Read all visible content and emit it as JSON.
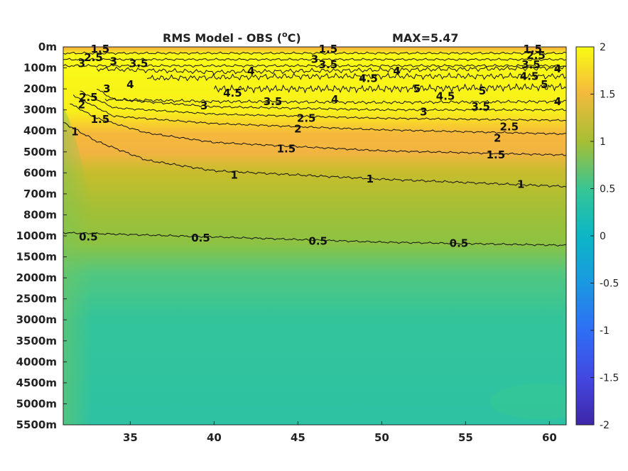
{
  "chart_data": {
    "type": "heatmap",
    "title": "RMS Model - OBS (",
    "title_sup": "o",
    "title_unit": "C)",
    "max_label": "MAX=5.47",
    "xlabel": "",
    "ylabel": "",
    "x_ticks": [
      35,
      40,
      45,
      50,
      55,
      60
    ],
    "xlim": [
      31,
      61
    ],
    "y_tick_labels": [
      "0m",
      "100m",
      "200m",
      "300m",
      "400m",
      "500m",
      "600m",
      "700m",
      "800m",
      "1000m",
      "1500m",
      "2000m",
      "2500m",
      "3000m",
      "3500m",
      "4000m",
      "4500m",
      "5000m",
      "5500m"
    ],
    "colorbar": {
      "range": [
        -2,
        2
      ],
      "ticks": [
        2,
        1.5,
        1,
        0.5,
        0,
        -0.5,
        -1,
        -1.5,
        -2
      ],
      "tick_labels": [
        "2",
        "1.5",
        "1",
        "0.5",
        "0",
        "-0.5",
        "-1",
        "-1.5",
        "-2"
      ],
      "colormap": "parula"
    },
    "contour_levels": [
      0.5,
      1,
      1.5,
      2,
      2.5,
      3,
      3.5,
      4,
      4.5,
      5
    ],
    "contour_labels": [
      {
        "text": "1.5",
        "x": 33.2,
        "depth_index": 0.1
      },
      {
        "text": "2.5",
        "x": 32.8,
        "depth_index": 0.5
      },
      {
        "text": "3",
        "x": 34.0,
        "depth_index": 0.7
      },
      {
        "text": "3",
        "x": 32.1,
        "depth_index": 0.8
      },
      {
        "text": "3.5",
        "x": 35.5,
        "depth_index": 0.8
      },
      {
        "text": "4",
        "x": 42.2,
        "depth_index": 1.15
      },
      {
        "text": "4",
        "x": 35.0,
        "depth_index": 1.8
      },
      {
        "text": "3",
        "x": 33.6,
        "depth_index": 2.0
      },
      {
        "text": "4.5",
        "x": 41.1,
        "depth_index": 2.2
      },
      {
        "text": "3.5",
        "x": 43.5,
        "depth_index": 2.6
      },
      {
        "text": "3",
        "x": 39.4,
        "depth_index": 2.8
      },
      {
        "text": "2.5",
        "x": 32.5,
        "depth_index": 2.4
      },
      {
        "text": "2",
        "x": 32.1,
        "depth_index": 2.75
      },
      {
        "text": "1.5",
        "x": 33.2,
        "depth_index": 3.45
      },
      {
        "text": "1",
        "x": 31.7,
        "depth_index": 4.05
      },
      {
        "text": "2.5",
        "x": 45.5,
        "depth_index": 3.4
      },
      {
        "text": "2",
        "x": 45.0,
        "depth_index": 3.9
      },
      {
        "text": "1.5",
        "x": 44.3,
        "depth_index": 4.85
      },
      {
        "text": "1",
        "x": 41.2,
        "depth_index": 6.1
      },
      {
        "text": "1.5",
        "x": 46.8,
        "depth_index": 0.1
      },
      {
        "text": "3",
        "x": 46.0,
        "depth_index": 0.6
      },
      {
        "text": "3.5",
        "x": 46.8,
        "depth_index": 0.85
      },
      {
        "text": "4.5",
        "x": 49.2,
        "depth_index": 1.5
      },
      {
        "text": "4",
        "x": 50.9,
        "depth_index": 1.15
      },
      {
        "text": "4",
        "x": 47.2,
        "depth_index": 2.5
      },
      {
        "text": "5",
        "x": 52.1,
        "depth_index": 2.0
      },
      {
        "text": "4.5",
        "x": 53.8,
        "depth_index": 2.35
      },
      {
        "text": "5",
        "x": 56.0,
        "depth_index": 2.1
      },
      {
        "text": "3",
        "x": 52.5,
        "depth_index": 3.1
      },
      {
        "text": "3.5",
        "x": 55.9,
        "depth_index": 2.85
      },
      {
        "text": "2.5",
        "x": 57.6,
        "depth_index": 3.8
      },
      {
        "text": "2",
        "x": 56.9,
        "depth_index": 4.35
      },
      {
        "text": "1.5",
        "x": 56.8,
        "depth_index": 5.15
      },
      {
        "text": "1",
        "x": 49.3,
        "depth_index": 6.3
      },
      {
        "text": "1",
        "x": 58.3,
        "depth_index": 6.55
      },
      {
        "text": "1.5",
        "x": 59.0,
        "depth_index": 0.1
      },
      {
        "text": "2.5",
        "x": 59.2,
        "depth_index": 0.4
      },
      {
        "text": "3.5",
        "x": 58.9,
        "depth_index": 0.85
      },
      {
        "text": "4",
        "x": 61.0,
        "depth_index": 1.05
      },
      {
        "text": "4.5",
        "x": 58.8,
        "depth_index": 1.4
      },
      {
        "text": "5",
        "x": 59.7,
        "depth_index": 1.8
      },
      {
        "text": "4",
        "x": 60.5,
        "depth_index": 2.6
      },
      {
        "text": "0.5",
        "x": 32.5,
        "depth_index": 9.05
      },
      {
        "text": "0.5",
        "x": 39.2,
        "depth_index": 9.1
      },
      {
        "text": "0.5",
        "x": 46.2,
        "depth_index": 9.25
      },
      {
        "text": "0.5",
        "x": 54.6,
        "depth_index": 9.35
      }
    ]
  }
}
